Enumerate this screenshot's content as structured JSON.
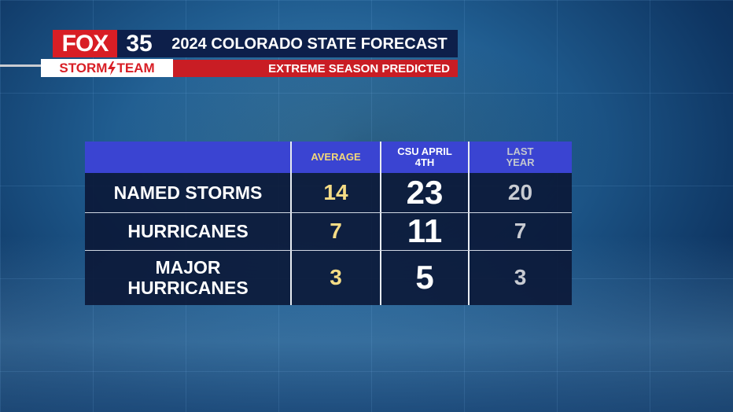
{
  "header": {
    "logo": {
      "network": "FOX",
      "channel": "35",
      "team_left": "STORM",
      "team_right": "TEAM"
    },
    "title": "2024 COLORADO STATE FORECAST",
    "subtitle": "EXTREME SEASON PREDICTED"
  },
  "table": {
    "columns": [
      "AVERAGE",
      "CSU APRIL 4TH",
      "LAST YEAR"
    ],
    "rows": [
      {
        "label": "NAMED STORMS",
        "values": [
          14,
          23,
          20
        ]
      },
      {
        "label": "HURRICANES",
        "values": [
          7,
          11,
          7
        ]
      },
      {
        "label": "MAJOR HURRICANES",
        "values": [
          3,
          5,
          3
        ]
      }
    ]
  }
}
